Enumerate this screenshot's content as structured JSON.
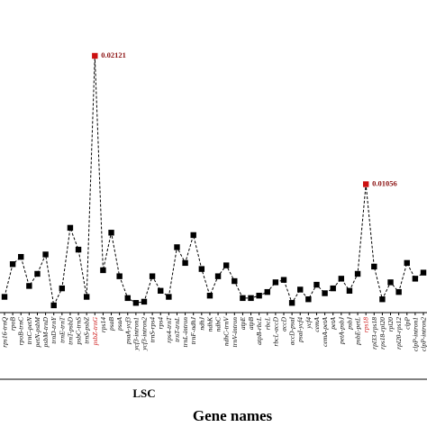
{
  "chart_data": {
    "type": "line",
    "xlabel": "Gene names",
    "ylabel": "",
    "region_label": "LSC",
    "ylim": [
      0,
      0.0235
    ],
    "line_color": "#000000",
    "marker_color": "#000000",
    "highlight_color": "#cc1111",
    "categories": [
      "rps16-trnQ",
      "rpoB",
      "rpoB-trnC",
      "trnC-petN",
      "petN-psbM",
      "psbM-trnD",
      "trnD-trnY",
      "trnE-trnT",
      "trnT-psbD",
      "psbC-trnS",
      "trnS-psbZ",
      "psbZ-trnG",
      "rps14",
      "psaB",
      "psaA",
      "psaA-ycf3",
      "ycf3-intron1",
      "ycf3-intron2",
      "trnS-rps4",
      "rps4",
      "rps4-trnT",
      "trnT-trnL",
      "trnL-intron",
      "trnF-ndhJ",
      "ndhJ",
      "ndhK",
      "ndhC",
      "ndhC-trnV",
      "trnV-intron",
      "atpE",
      "atpB",
      "atpB-rbcL",
      "rbcL",
      "rbcL-accD",
      "accD",
      "accD-psaI",
      "psaI-ycf4",
      "ycf4",
      "cemA",
      "cemA-petA",
      "petA",
      "petA-psbJ",
      "psbJ",
      "psbE-petL",
      "rps18",
      "rpl33-rps18",
      "rps18-rpl20",
      "rpl20",
      "rpl20-rps12",
      "clpP",
      "clpP-intron1",
      "clpP-intron2"
    ],
    "values": [
      0.0013,
      0.004,
      0.0046,
      0.0022,
      0.0032,
      0.0048,
      0.0006,
      0.002,
      0.007,
      0.0052,
      0.0013,
      0.0212,
      0.0035,
      0.0066,
      0.003,
      0.0012,
      0.0008,
      0.0009,
      0.003,
      0.0018,
      0.0013,
      0.0054,
      0.0041,
      0.0064,
      0.0036,
      0.0014,
      0.003,
      0.0039,
      0.0026,
      0.0012,
      0.0012,
      0.0014,
      0.0017,
      0.0025,
      0.0027,
      0.0008,
      0.0019,
      0.0011,
      0.0023,
      0.0016,
      0.002,
      0.0028,
      0.0018,
      0.0032,
      0.0106,
      0.0038,
      0.0011,
      0.0025,
      0.0017,
      0.0041,
      0.0028,
      0.0033
    ],
    "highlights": [
      {
        "index": 11,
        "label": "0.02121"
      },
      {
        "index": 44,
        "label": "0.01056"
      }
    ]
  }
}
